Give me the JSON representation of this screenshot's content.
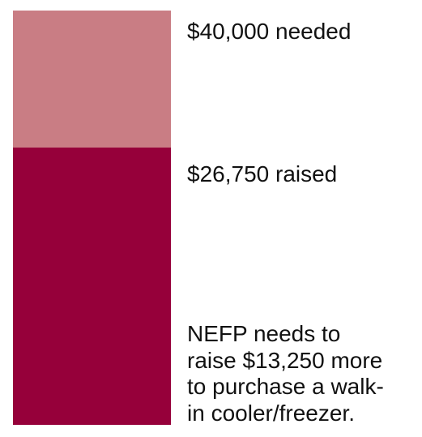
{
  "chart_data": {
    "type": "bar",
    "categories": [
      ""
    ],
    "series": [
      {
        "name": "",
        "values": [
          26750
        ]
      }
    ],
    "goal": 40000,
    "raised": 26750,
    "remaining": 13250,
    "ylim": [
      0,
      40000
    ],
    "colors": {
      "needed": "#c97d84",
      "raised": "#96003a"
    },
    "labels": {
      "needed": "$40,000 needed",
      "raised": "$26,750 raised"
    },
    "annotation_lines": [
      "NEFP needs to",
      "raise $13,250 more",
      "to purchase a walk-",
      "in cooler/freezer."
    ]
  }
}
